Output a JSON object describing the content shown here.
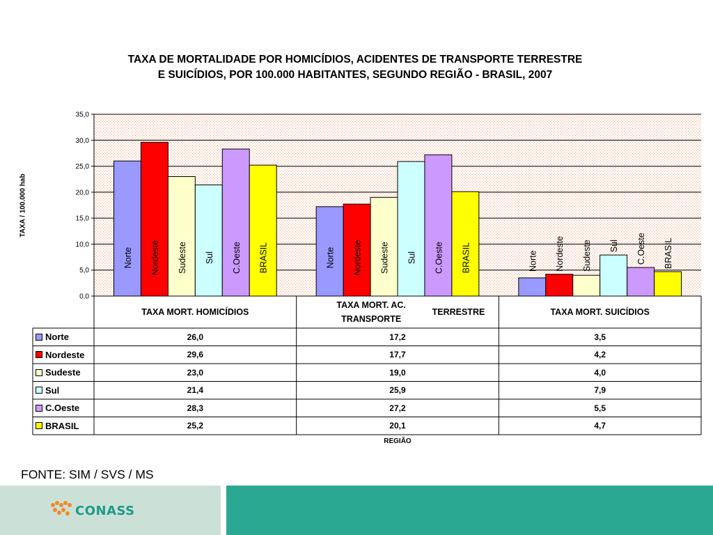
{
  "chart_data": {
    "type": "bar",
    "title_line1": "TAXA DE MORTALIDADE POR HOMICÍDIOS, ACIDENTES DE TRANSPORTE TERRESTRE",
    "title_line2": "E SUICÍDIOS, POR 100.000 HABITANTES,  SEGUNDO REGIÃO - BRASIL, 2007",
    "ylabel": "TAXA / 100.000 hab",
    "xlabel": "REGIÃO",
    "ylim": [
      0,
      35
    ],
    "ytick_step": 5,
    "ytick_labels": [
      "0,0",
      "5,0",
      "10,0",
      "15,0",
      "20,0",
      "25,0",
      "30,0",
      "35,0"
    ],
    "grid": true,
    "categories": [
      "TAXA MORT. HOMICÍDIOS",
      "TAXA MORT. AC. TRANSPORTE TERRESTRE",
      "TAXA MORT. SUICÍDIOS"
    ],
    "series": [
      {
        "name": "Norte",
        "color": "#9999ff",
        "values": [
          26.0,
          17.2,
          3.5
        ],
        "labels": [
          "26,0",
          "17,2",
          "3,5"
        ]
      },
      {
        "name": "Nordeste",
        "color": "#ff0000",
        "values": [
          29.6,
          17.7,
          4.2
        ],
        "labels": [
          "29,6",
          "17,7",
          "4,2"
        ]
      },
      {
        "name": "Sudeste",
        "color": "#ffffcc",
        "values": [
          23.0,
          19.0,
          4.0
        ],
        "labels": [
          "23,0",
          "19,0",
          "4,0"
        ]
      },
      {
        "name": "Sul",
        "color": "#ccffff",
        "values": [
          21.4,
          25.9,
          7.9
        ],
        "labels": [
          "21,4",
          "25,9",
          "7,9"
        ]
      },
      {
        "name": "C.Oeste",
        "color": "#cc99ff",
        "values": [
          28.3,
          27.2,
          5.5
        ],
        "labels": [
          "28,3",
          "27,2",
          "5,5"
        ]
      },
      {
        "name": "BRASIL",
        "color": "#ffff00",
        "values": [
          25.2,
          20.1,
          4.7
        ],
        "labels": [
          "25,2",
          "20,1",
          "4,7"
        ]
      }
    ],
    "legend_placement": "data-table"
  },
  "table": {
    "header_line1": [
      "TAXA MORT. HOMICÍDIOS",
      "TAXA MORT. AC. TRANSPORTE",
      "TAXA MORT. SUICÍDIOS"
    ],
    "header_line2": [
      "",
      "TERRESTRE",
      ""
    ]
  },
  "source": "FONTE: SIM / SVS / MS",
  "footer": {
    "logo_text": "CONASS",
    "logo_color": "#f08a2c",
    "text_color": "#1e9a86",
    "left_color": "#cbe1d8",
    "right_color": "#2aa891"
  }
}
